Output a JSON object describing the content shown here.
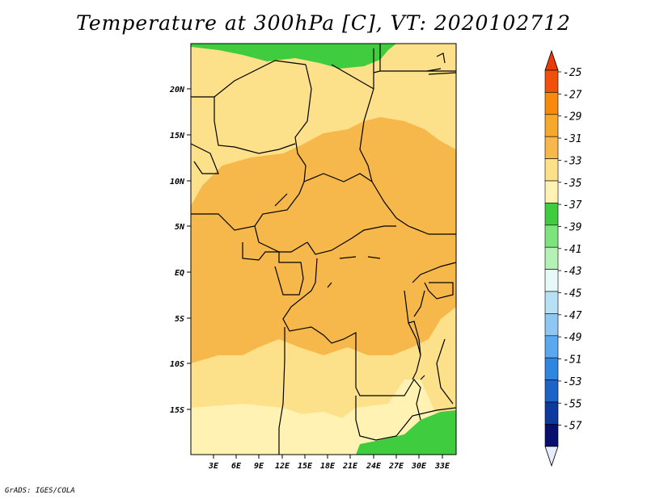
{
  "title": "Temperature at 300hPa [C], VT: 2020102712",
  "credit": "GrADS: IGES/COLA",
  "map": {
    "lon_labels": [
      "3E",
      "6E",
      "9E",
      "12E",
      "15E",
      "18E",
      "21E",
      "24E",
      "27E",
      "30E",
      "33E"
    ],
    "lat_labels": [
      "20N",
      "15N",
      "10N",
      "5N",
      "EQ",
      "5S",
      "10S",
      "15S"
    ],
    "colors": {
      "c_35_33": "#fff2b3",
      "c_33_31": "#fde08a",
      "c_31_29": "#f6b84a",
      "c_37_35": "#3fcc3f",
      "border": "#000000"
    }
  },
  "colorbar": {
    "labels": [
      "-25",
      "-27",
      "-29",
      "-31",
      "-33",
      "-35",
      "-37",
      "-39",
      "-41",
      "-43",
      "-45",
      "-47",
      "-49",
      "-51",
      "-53",
      "-55",
      "-57"
    ],
    "colors": [
      "#f0500a",
      "#f78a0a",
      "#f6a82c",
      "#f6b84a",
      "#fde08a",
      "#fff2b3",
      "#3fcc3f",
      "#7de37d",
      "#b5f0b5",
      "#e6f8f8",
      "#b8e0f5",
      "#8ec7f2",
      "#5aa9ee",
      "#2f86e0",
      "#1c64c8",
      "#0d3a9c",
      "#08106e"
    ],
    "top_color": "#e83a0a",
    "bottom_color": "#e8ecff"
  }
}
